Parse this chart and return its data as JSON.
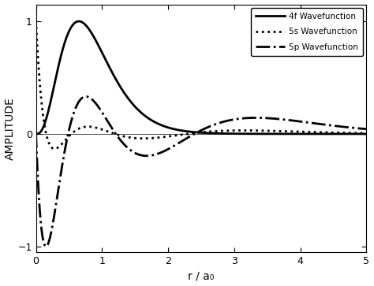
{
  "title": "",
  "xlabel": "r / a₀",
  "ylabel": "AMPLITUDE",
  "xlim": [
    0,
    5
  ],
  "ylim": [
    -1.05,
    1.15
  ],
  "yticks": [
    -1,
    0,
    1
  ],
  "xticks": [
    0,
    1,
    2,
    3,
    4,
    5
  ],
  "background_color": "#ffffff",
  "legend_entries": [
    {
      "label": "4f Wavefunction",
      "linestyle": "-",
      "linewidth": 2.0,
      "color": "#000000"
    },
    {
      "label": "5s Wavefunction",
      "linestyle": ":",
      "linewidth": 2.0,
      "color": "#000000"
    },
    {
      "label": "5p Wavefunction",
      "linestyle": "-.",
      "linewidth": 2.0,
      "color": "#000000"
    }
  ],
  "figsize": [
    4.74,
    3.63
  ],
  "dpi": 100
}
